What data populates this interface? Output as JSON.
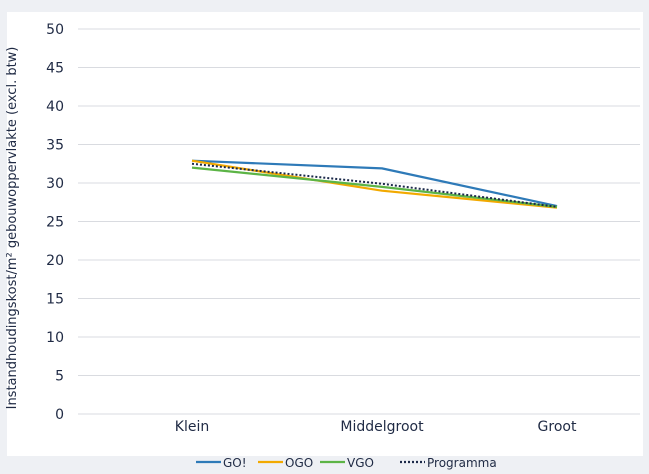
{
  "chart_data": {
    "type": "line",
    "title": "",
    "xlabel": "",
    "ylabel": "Instandhoudingskost/m² gebouwoppervlakte (excl. btw)",
    "categories": [
      "Klein",
      "Middelgroot",
      "Groot"
    ],
    "ylim": [
      0,
      50
    ],
    "yticks": [
      "0",
      "5",
      "10",
      "15",
      "20",
      "25",
      "30",
      "35",
      "40",
      "45",
      "50"
    ],
    "grid": true,
    "legend_position": "bottom",
    "series": [
      {
        "name": "GO!",
        "values": [
          32.9,
          31.9,
          27.0
        ],
        "color": "#2e7ab8",
        "dash": "solid"
      },
      {
        "name": "OGO",
        "values": [
          32.9,
          29.0,
          26.8
        ],
        "color": "#f2a900",
        "dash": "solid"
      },
      {
        "name": "VGO",
        "values": [
          32.0,
          29.5,
          26.9
        ],
        "color": "#5cb446",
        "dash": "solid"
      },
      {
        "name": "Programma",
        "values": [
          32.5,
          29.9,
          26.9
        ],
        "color": "#1c2a4a",
        "dash": "dotted"
      }
    ]
  }
}
